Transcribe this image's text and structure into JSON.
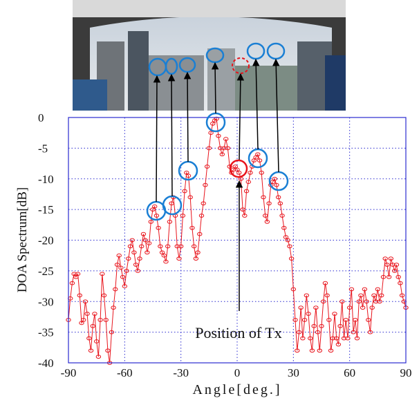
{
  "chart_data": {
    "type": "line",
    "xlabel": "Angle[deg.]",
    "ylabel": "DOA Spectrum[dB]",
    "annotation": "Position of Tx",
    "x": [
      -90,
      -89,
      -88,
      -87,
      -86,
      -85,
      -84,
      -83,
      -82,
      -81,
      -80,
      -79,
      -78,
      -77,
      -76,
      -75,
      -74,
      -73,
      -72,
      -71,
      -70,
      -69,
      -68,
      -67,
      -66,
      -65,
      -64,
      -63,
      -62,
      -61,
      -60,
      -59,
      -58,
      -57,
      -56,
      -55,
      -54,
      -53,
      -52,
      -51,
      -50,
      -49,
      -48,
      -47,
      -46,
      -45,
      -44,
      -43,
      -42,
      -41,
      -40,
      -39,
      -38,
      -37,
      -36,
      -35,
      -34,
      -33,
      -32,
      -31,
      -30,
      -29,
      -28,
      -27,
      -26,
      -25,
      -24,
      -23,
      -22,
      -21,
      -20,
      -19,
      -18,
      -17,
      -16,
      -15,
      -14,
      -13,
      -12,
      -11,
      -10,
      -9,
      -8,
      -7,
      -6,
      -5,
      -4,
      -3,
      -2,
      -1,
      0,
      1,
      2,
      3,
      4,
      5,
      6,
      7,
      8,
      9,
      10,
      11,
      12,
      13,
      14,
      15,
      16,
      17,
      18,
      19,
      20,
      21,
      22,
      23,
      24,
      25,
      26,
      27,
      28,
      29,
      30,
      31,
      32,
      33,
      34,
      35,
      36,
      37,
      38,
      39,
      40,
      41,
      42,
      43,
      44,
      45,
      46,
      47,
      48,
      49,
      50,
      51,
      52,
      53,
      54,
      55,
      56,
      57,
      58,
      59,
      60,
      61,
      62,
      63,
      64,
      65,
      66,
      67,
      68,
      69,
      70,
      71,
      72,
      73,
      74,
      75,
      76,
      77,
      78,
      79,
      80,
      81,
      82,
      83,
      84,
      85,
      86,
      87,
      88,
      89,
      90
    ],
    "series": [
      {
        "color": "#e8141c",
        "values": [
          -33,
          -29.5,
          -27,
          -25.5,
          -26,
          -25.5,
          -29,
          -33.5,
          -33,
          -30,
          -32,
          -36,
          -38,
          -34,
          -32,
          -36.5,
          -39,
          -33,
          -25.5,
          -29,
          -33,
          -38,
          -40,
          -35,
          -31,
          -28,
          -24,
          -22.5,
          -24.5,
          -26,
          -27.5,
          -25,
          -23,
          -21,
          -20,
          -22,
          -24,
          -25,
          -23,
          -21,
          -19,
          -20,
          -22,
          -20.5,
          -17,
          -15,
          -14.5,
          -16,
          -18,
          -21,
          -22,
          -22.5,
          -23.5,
          -21,
          -17,
          -14,
          -13,
          -16,
          -21,
          -23,
          -21,
          -16,
          -12,
          -9,
          -9.5,
          -13,
          -18,
          -21,
          -23,
          -22,
          -19,
          -16,
          -14,
          -11,
          -8,
          -5,
          -2.5,
          -1,
          -0.5,
          -0.2,
          -3,
          -5,
          -6,
          -5,
          -3.5,
          -5,
          -8,
          -9,
          -8.5,
          -8,
          -8.5,
          -9,
          -10,
          -15,
          -16,
          -12,
          -10.5,
          -9,
          -8,
          -7,
          -6.5,
          -6,
          -7,
          -9,
          -13,
          -16,
          -17,
          -14,
          -11,
          -10.5,
          -10,
          -11,
          -13,
          -14,
          -16,
          -18,
          -19.5,
          -20,
          -21,
          -23,
          -28,
          -33,
          -38,
          -35,
          -31,
          -36,
          -33,
          -29,
          -32,
          -36,
          -38,
          -34,
          -31,
          -35,
          -38,
          -34,
          -30,
          -27,
          -29,
          -33,
          -38,
          -36,
          -32,
          -36,
          -37,
          -34,
          -30,
          -36,
          -33,
          -36,
          -31,
          -28,
          -35,
          -33,
          -36,
          -30,
          -29,
          -31,
          -28,
          -30,
          -33,
          -35,
          -31,
          -29,
          -30,
          -28,
          -30,
          -29,
          -26,
          -23,
          -24,
          -26,
          -23,
          -24,
          -25,
          -24,
          -26,
          -27,
          -29,
          -30,
          -31
        ]
      }
    ],
    "xlim": [
      -90,
      90
    ],
    "xticks": [
      -90,
      -60,
      -30,
      0,
      30,
      60,
      90
    ],
    "ylim": [
      -40,
      0
    ],
    "yticks": [
      0,
      -5,
      -10,
      -15,
      -20,
      -25,
      -30,
      -35,
      -40
    ],
    "grid": true
  }
}
